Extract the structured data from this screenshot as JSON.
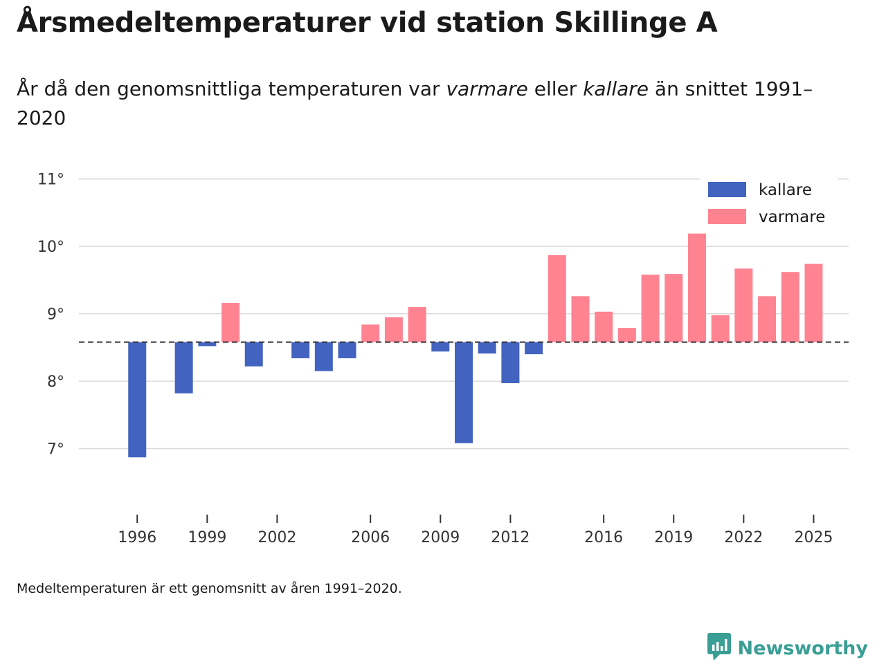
{
  "title": "Årsmedeltemperaturer vid station Skillinge A",
  "subtitle": {
    "prefix": "År då den genomsnittliga temperaturen var ",
    "warm": "varmare",
    "middle": " eller ",
    "cold": "kallare",
    "suffix": " än snittet 1991–2020"
  },
  "footnote": "Medeltemperaturen är ett genomsnitt av åren 1991–2020.",
  "brand": {
    "name": "Newsworthy",
    "icon": "newsworthy-logo-icon",
    "color": "#3a9e95"
  },
  "colors": {
    "kallare": "#4263bf",
    "varmare": "#ff8391",
    "baseline": "#333333",
    "grid": "#d9d9d9"
  },
  "chart_data": {
    "type": "bar",
    "title": "Årsmedeltemperaturer vid station Skillinge A",
    "xlabel": "",
    "ylabel": "",
    "baseline": 8.58,
    "ylim": [
      6.0,
      11.5
    ],
    "y_ticks": [
      7,
      8,
      9,
      10,
      11
    ],
    "y_tick_labels": [
      "7°",
      "8°",
      "9°",
      "10°",
      "11°"
    ],
    "x_ticks": [
      1996,
      1999,
      2002,
      2006,
      2009,
      2012,
      2016,
      2019,
      2022,
      2025
    ],
    "x_tick_labels": [
      "1996",
      "1999",
      "2002",
      "2006",
      "2009",
      "2012",
      "2016",
      "2019",
      "2022",
      "2025"
    ],
    "legend": {
      "placement": "top-right",
      "entries": [
        {
          "key": "kallare",
          "label": "kallare"
        },
        {
          "key": "varmare",
          "label": "varmare"
        }
      ]
    },
    "series": [
      {
        "year": 1996,
        "value": 6.87
      },
      {
        "year": 1998,
        "value": 7.82
      },
      {
        "year": 1999,
        "value": 8.52
      },
      {
        "year": 2000,
        "value": 9.16
      },
      {
        "year": 2001,
        "value": 8.22
      },
      {
        "year": 2003,
        "value": 8.34
      },
      {
        "year": 2004,
        "value": 8.15
      },
      {
        "year": 2005,
        "value": 8.34
      },
      {
        "year": 2006,
        "value": 8.84
      },
      {
        "year": 2007,
        "value": 8.95
      },
      {
        "year": 2008,
        "value": 9.1
      },
      {
        "year": 2009,
        "value": 8.44
      },
      {
        "year": 2010,
        "value": 7.08
      },
      {
        "year": 2011,
        "value": 8.41
      },
      {
        "year": 2012,
        "value": 7.97
      },
      {
        "year": 2013,
        "value": 8.4
      },
      {
        "year": 2014,
        "value": 9.87
      },
      {
        "year": 2015,
        "value": 9.26
      },
      {
        "year": 2016,
        "value": 9.03
      },
      {
        "year": 2017,
        "value": 8.79
      },
      {
        "year": 2018,
        "value": 9.58
      },
      {
        "year": 2019,
        "value": 9.59
      },
      {
        "year": 2020,
        "value": 10.19
      },
      {
        "year": 2021,
        "value": 8.98
      },
      {
        "year": 2022,
        "value": 9.67
      },
      {
        "year": 2023,
        "value": 9.26
      },
      {
        "year": 2024,
        "value": 9.62
      },
      {
        "year": 2025,
        "value": 9.74
      }
    ]
  }
}
